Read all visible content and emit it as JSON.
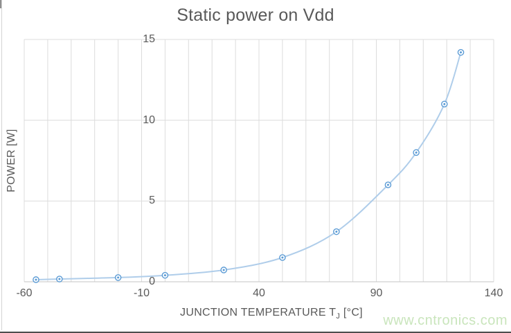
{
  "title": "Static power on Vdd",
  "watermark": {
    "text": "www.cntronics.com"
  },
  "chart_data": {
    "type": "line",
    "title": "Static power on Vdd",
    "xlabel": "JUNCTION TEMPERATURE TJ [°C]",
    "xlabel_parts": [
      "JUNCTION TEMPERATURE T",
      "J",
      " [°C]"
    ],
    "ylabel": "POWER [W]",
    "x": [
      -55,
      -45,
      -20,
      0,
      25,
      50,
      73,
      95,
      107,
      119,
      126
    ],
    "y": [
      0.13,
      0.17,
      0.26,
      0.4,
      0.73,
      1.5,
      3.1,
      6.0,
      8.0,
      11.0,
      14.2
    ],
    "xlim": [
      -60,
      140
    ],
    "ylim": [
      0,
      15
    ],
    "x_major_ticks": [
      -60,
      -10,
      40,
      90,
      140
    ],
    "x_minor_step": 10,
    "y_ticks": [
      0,
      5,
      10,
      15
    ],
    "legend": "none",
    "grid": "minor vertical + major horizontal",
    "line_style": "smooth",
    "marker": "bullseye-circle",
    "colors": {
      "line": "#afcdea",
      "marker": "#5b9bd5",
      "marker_fill": "#ffffff",
      "grid": "#dcdcdc",
      "axis_line": "#c4c4c4",
      "text": "#595959",
      "watermark": "#c9e5bc"
    }
  }
}
